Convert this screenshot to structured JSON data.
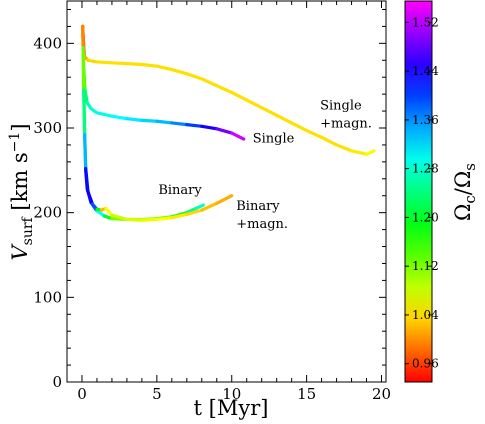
{
  "chart_data": {
    "type": "scatter",
    "title": "",
    "xlabel": "t [Myr]",
    "ylabel": "V_surf [km s^-1]",
    "ylabel_parts": {
      "main": "V",
      "sub": "surf",
      "unit_open": " [km s",
      "sup": "−1",
      "unit_close": "]"
    },
    "xlim": [
      -1,
      20.3
    ],
    "ylim": [
      0,
      450
    ],
    "xticks": [
      0,
      5,
      10,
      15,
      20
    ],
    "xtick_labels": [
      "0",
      "5",
      "10",
      "15",
      "20"
    ],
    "yticks": [
      0,
      100,
      200,
      300,
      400
    ],
    "ytick_labels": [
      "0",
      "100",
      "200",
      "300",
      "400"
    ],
    "grid": false,
    "colorbar": {
      "label_main": "Ω",
      "label_sub1": "c",
      "label_slash": "/Ω",
      "label_sub2": "s",
      "range": [
        0.93,
        1.555
      ],
      "ticks": [
        0.96,
        1.04,
        1.12,
        1.2,
        1.28,
        1.36,
        1.44,
        1.52
      ],
      "tick_labels": [
        "0.96",
        "1.04",
        "1.12",
        "1.20",
        "1.28",
        "1.36",
        "1.44",
        "1.52"
      ],
      "colormap": "gist_rainbow_r"
    },
    "annotations": [
      {
        "key": "single",
        "lines": [
          "Single"
        ],
        "x": 11.4,
        "y": 283
      },
      {
        "key": "single-magn",
        "lines": [
          "Single",
          "+magn."
        ],
        "x": 15.9,
        "y": 322
      },
      {
        "key": "binary",
        "lines": [
          "Binary"
        ],
        "x": 5.1,
        "y": 222
      },
      {
        "key": "binary-magn",
        "lines": [
          "Binary",
          "+magn."
        ],
        "x": 10.3,
        "y": 203
      }
    ],
    "series": [
      {
        "name": "Single",
        "points": [
          [
            0.05,
            420,
            0.93
          ],
          [
            0.08,
            400,
            0.98
          ],
          [
            0.12,
            370,
            1.1
          ],
          [
            0.2,
            345,
            1.2
          ],
          [
            0.35,
            330,
            1.26
          ],
          [
            0.6,
            323,
            1.28
          ],
          [
            1.0,
            318,
            1.29
          ],
          [
            2.0,
            314,
            1.3
          ],
          [
            3.0,
            311,
            1.31
          ],
          [
            4.0,
            309,
            1.32
          ],
          [
            5.0,
            308,
            1.33
          ],
          [
            6.0,
            306,
            1.35
          ],
          [
            7.0,
            304,
            1.38
          ],
          [
            8.0,
            302,
            1.42
          ],
          [
            9.0,
            299,
            1.46
          ],
          [
            10.0,
            294,
            1.51
          ],
          [
            10.8,
            287,
            1.555
          ]
        ]
      },
      {
        "name": "Single +magn.",
        "points": [
          [
            0.05,
            420,
            0.93
          ],
          [
            0.15,
            385,
            1.0
          ],
          [
            0.4,
            380,
            1.03
          ],
          [
            1.0,
            378,
            1.04
          ],
          [
            2.0,
            377,
            1.04
          ],
          [
            3.0,
            376,
            1.04
          ],
          [
            4.0,
            375,
            1.04
          ],
          [
            5.0,
            373,
            1.04
          ],
          [
            6.0,
            369,
            1.04
          ],
          [
            7.0,
            364,
            1.04
          ],
          [
            8.0,
            358,
            1.04
          ],
          [
            9.0,
            350,
            1.04
          ],
          [
            10.0,
            342,
            1.04
          ],
          [
            11.0,
            333,
            1.04
          ],
          [
            12.0,
            324,
            1.04
          ],
          [
            13.0,
            315,
            1.04
          ],
          [
            14.0,
            306,
            1.04
          ],
          [
            15.0,
            297,
            1.04
          ],
          [
            16.0,
            289,
            1.04
          ],
          [
            17.0,
            280,
            1.04
          ],
          [
            18.0,
            273,
            1.04
          ],
          [
            19.0,
            269,
            1.05
          ],
          [
            19.5,
            273,
            1.07
          ]
        ]
      },
      {
        "name": "Binary",
        "points": [
          [
            0.05,
            420,
            0.93
          ],
          [
            0.08,
            390,
            1.08
          ],
          [
            0.12,
            340,
            1.2
          ],
          [
            0.18,
            290,
            1.28
          ],
          [
            0.25,
            250,
            1.4
          ],
          [
            0.35,
            228,
            1.46
          ],
          [
            0.6,
            212,
            1.44
          ],
          [
            1.0,
            202,
            1.36
          ],
          [
            1.5,
            196,
            1.25
          ],
          [
            2.0,
            193,
            1.14
          ],
          [
            3.0,
            192,
            1.1
          ],
          [
            4.0,
            192,
            1.09
          ],
          [
            5.0,
            193,
            1.11
          ],
          [
            6.0,
            195,
            1.15
          ],
          [
            7.0,
            200,
            1.22
          ],
          [
            7.6,
            205,
            1.26
          ],
          [
            8.1,
            209,
            1.29
          ]
        ]
      },
      {
        "name": "Binary +magn.",
        "points": [
          [
            0.05,
            420,
            0.93
          ],
          [
            0.08,
            395,
            1.06
          ],
          [
            0.12,
            345,
            1.2
          ],
          [
            0.18,
            292,
            1.28
          ],
          [
            0.25,
            252,
            1.4
          ],
          [
            0.4,
            225,
            1.45
          ],
          [
            0.7,
            210,
            1.42
          ],
          [
            1.0,
            204,
            1.36
          ],
          [
            1.3,
            203,
            1.0
          ],
          [
            1.6,
            205,
            1.04
          ],
          [
            2.0,
            197,
            1.08
          ],
          [
            3.0,
            192,
            1.08
          ],
          [
            4.0,
            191,
            1.07
          ],
          [
            5.0,
            192,
            1.06
          ],
          [
            6.0,
            194,
            1.05
          ],
          [
            7.0,
            198,
            1.04
          ],
          [
            8.0,
            203,
            1.03
          ],
          [
            9.0,
            211,
            1.02
          ],
          [
            10.0,
            220,
            1.01
          ]
        ]
      }
    ]
  }
}
